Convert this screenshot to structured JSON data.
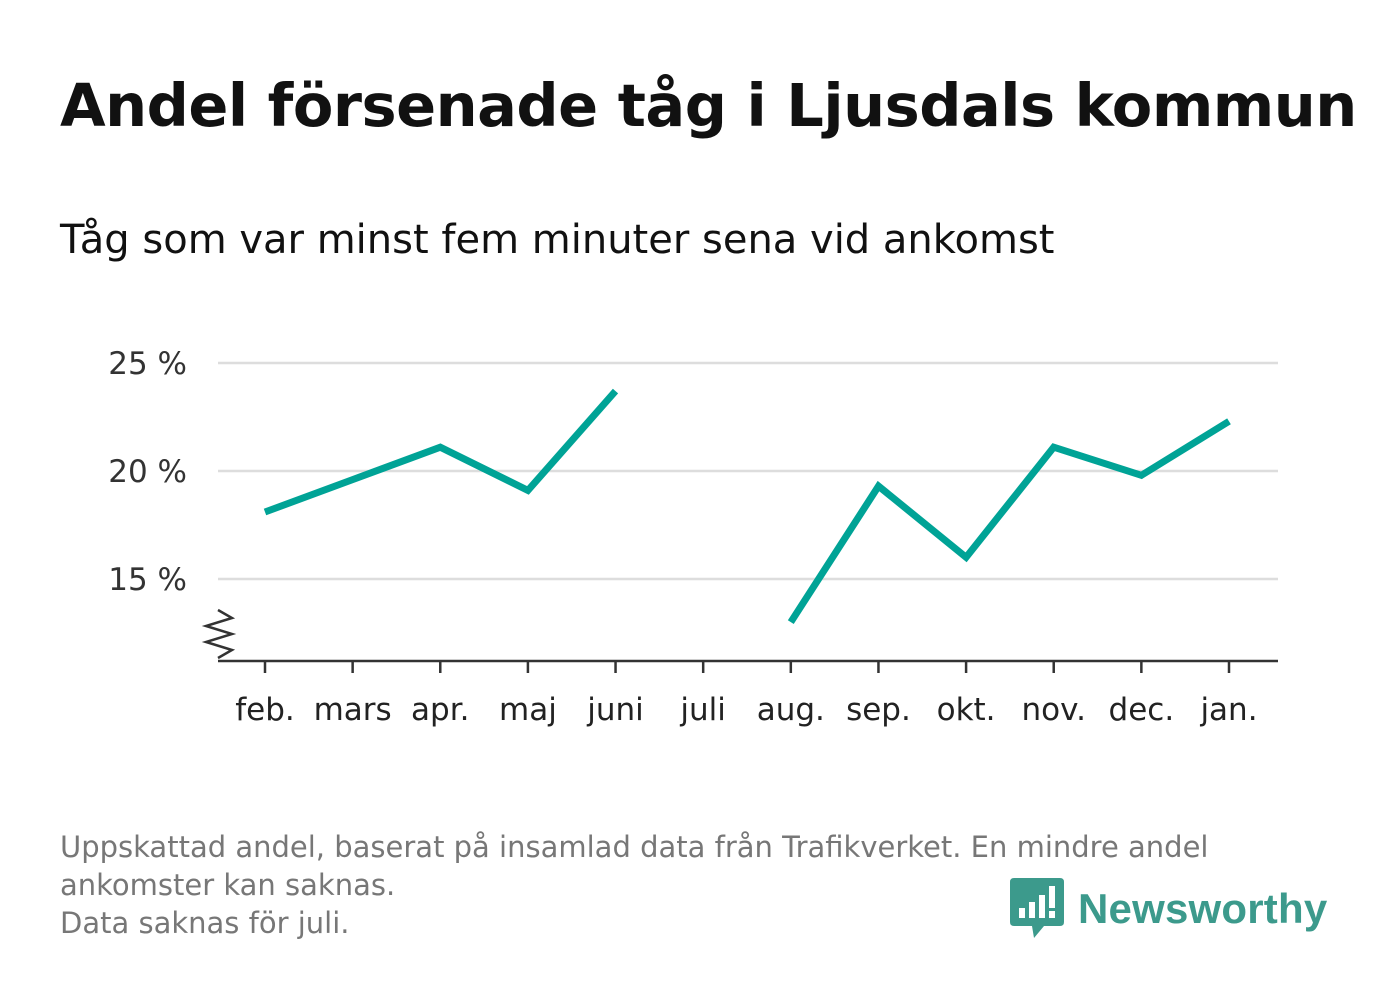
{
  "header": {
    "title": "Andel försenade tåg i Ljusdals kommun",
    "subtitle": "Tåg som var minst fem minuter sena vid ankomst"
  },
  "chart_data": {
    "type": "line",
    "title": "Andel försenade tåg i Ljusdals kommun",
    "subtitle": "Tåg som var minst fem minuter sena vid ankomst",
    "xlabel": "",
    "ylabel": "",
    "categories": [
      "feb.",
      "mars",
      "apr.",
      "maj",
      "juni",
      "juli",
      "aug.",
      "sep.",
      "okt.",
      "nov.",
      "dec.",
      "jan."
    ],
    "series": [
      {
        "values": [
          18.1,
          19.6,
          21.1,
          19.1,
          23.7,
          null,
          13.0,
          19.3,
          16.0,
          21.1,
          19.8,
          22.3
        ]
      }
    ],
    "yticks": [
      15,
      20,
      25
    ],
    "ytick_labels": [
      "15 %",
      "20 %",
      "25 %"
    ],
    "ylim": [
      11.2,
      25
    ],
    "y_axis_break": true,
    "grid": true,
    "legend": "none",
    "line_color": "#00a396"
  },
  "footer": {
    "note_1": "Uppskattad andel, baserat på insamlad data från Trafikverket. En mindre andel ankomster kan saknas.",
    "note_2": "Data saknas för juli."
  },
  "logo": {
    "text": "Newsworthy",
    "icon": "newsworthy-chart-bubble-icon",
    "color": "#3c9a8c"
  }
}
